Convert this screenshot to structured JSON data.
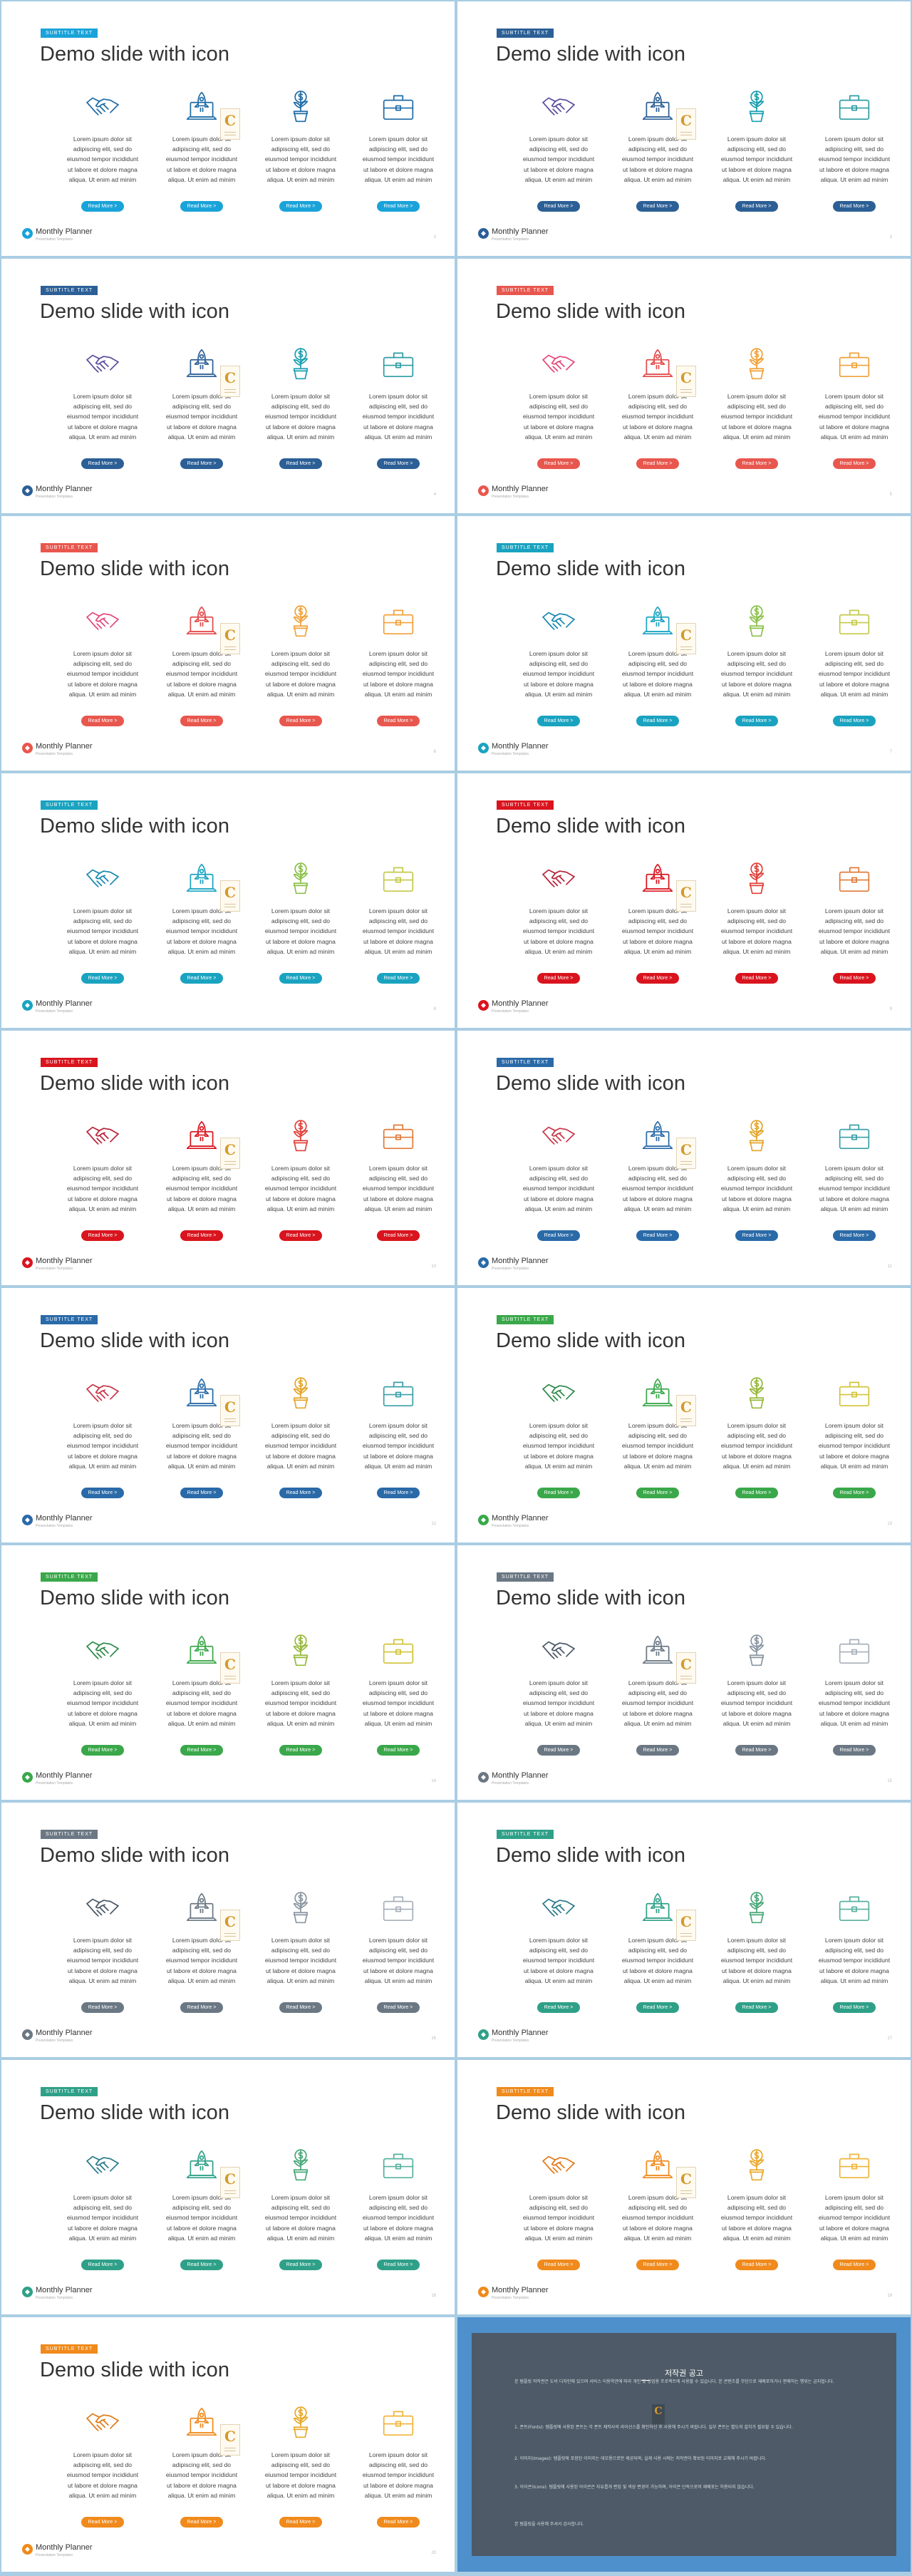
{
  "slide_common": {
    "badge": "SUBTITLE TEXT",
    "title": "Demo slide with icon",
    "body": "Lorem ipsum dolor sit\nadipiscing elit, sed do\neiusmod tempor incididunt\nut labore et dolore magna\naliqua. Ut enim ad minim",
    "button": "Read More  >",
    "brand": "Monthly Planner",
    "brand_sub": "Presentation Templates",
    "stamp_letter": "C"
  },
  "icons": [
    "handshake-icon",
    "laptop-rocket-icon",
    "dollar-plant-icon",
    "briefcase-icon"
  ],
  "slides": [
    {
      "page": "2",
      "accent": "#1aa3d9",
      "icon_colors": [
        "#1e6ca7",
        "#1e6ca7",
        "#1e6ca7",
        "#1e6ca7"
      ]
    },
    {
      "page": "3",
      "accent": "#2c5f96",
      "icon_colors": [
        "#5b4d9e",
        "#2c5f96",
        "#1a9fb0",
        "#2d9da3"
      ]
    },
    {
      "page": "4",
      "accent": "#2c5f96",
      "icon_colors": [
        "#5b4d9e",
        "#2c5f96",
        "#1a9fb0",
        "#2d9da3"
      ]
    },
    {
      "page": "5",
      "accent": "#e8574e",
      "icon_colors": [
        "#e2497a",
        "#e24a4a",
        "#f0a13a",
        "#f0a13a"
      ]
    },
    {
      "page": "6",
      "accent": "#e8574e",
      "icon_colors": [
        "#e2497a",
        "#e24a4a",
        "#f0a13a",
        "#f0a13a"
      ]
    },
    {
      "page": "7",
      "accent": "#1aa3c0",
      "icon_colors": [
        "#1a88b0",
        "#1aa3c0",
        "#8cc04a",
        "#c4c94a"
      ]
    },
    {
      "page": "8",
      "accent": "#1aa3c0",
      "icon_colors": [
        "#1a88b0",
        "#1aa3c0",
        "#8cc04a",
        "#c4c94a"
      ]
    },
    {
      "page": "9",
      "accent": "#d9141e",
      "icon_colors": [
        "#b8243a",
        "#d9141e",
        "#e0413a",
        "#e07b3a"
      ]
    },
    {
      "page": "10",
      "accent": "#d9141e",
      "icon_colors": [
        "#b8243a",
        "#d9141e",
        "#e0413a",
        "#e07b3a"
      ]
    },
    {
      "page": "11",
      "accent": "#2a6aa8",
      "icon_colors": [
        "#c9364a",
        "#2a6aa8",
        "#e3a52a",
        "#3aa0a8"
      ]
    },
    {
      "page": "12",
      "accent": "#2a6aa8",
      "icon_colors": [
        "#c9364a",
        "#2a6aa8",
        "#e3a52a",
        "#3aa0a8"
      ]
    },
    {
      "page": "13",
      "accent": "#3aa84a",
      "icon_colors": [
        "#2e8a4a",
        "#3aa84a",
        "#96b83a",
        "#d2c43a"
      ]
    },
    {
      "page": "14",
      "accent": "#3aa84a",
      "icon_colors": [
        "#2e8a4a",
        "#3aa84a",
        "#96b83a",
        "#d2c43a"
      ]
    },
    {
      "page": "15",
      "accent": "#6b7884",
      "icon_colors": [
        "#4a5866",
        "#6b7884",
        "#8a96a2",
        "#a8b0ba"
      ]
    },
    {
      "page": "16",
      "accent": "#6b7884",
      "icon_colors": [
        "#4a5866",
        "#6b7884",
        "#8a96a2",
        "#a8b0ba"
      ]
    },
    {
      "page": "17",
      "accent": "#2fa088",
      "icon_colors": [
        "#2a7b8a",
        "#2fa088",
        "#48a878",
        "#58b0a0"
      ]
    },
    {
      "page": "18",
      "accent": "#2fa088",
      "icon_colors": [
        "#2a7b8a",
        "#2fa088",
        "#48a878",
        "#58b0a0"
      ]
    },
    {
      "page": "19",
      "accent": "#f08a1c",
      "icon_colors": [
        "#e07a1a",
        "#f08a1c",
        "#e8a82a",
        "#f0b43a"
      ]
    },
    {
      "page": "20",
      "accent": "#f08a1c",
      "icon_colors": [
        "#e07a1a",
        "#f08a1c",
        "#e8a82a",
        "#f0b43a"
      ]
    }
  ],
  "copyright": {
    "title": "저작권 공고",
    "paragraphs": [
      "본 템플릿 저작권은 도비 디자인에 있으며 서비스 이용약관에 따라 개인 및 상업용 프로젝트에 사용할 수 있습니다. 본 콘텐츠를 무단으로 재배포하거나 판매하는 행위는 금지됩니다.",
      "1. 폰트(Fonts): 템플릿에 사용된 폰트는 각 폰트 제작사의 라이선스를 확인하신 후 사용해 주시기 바랍니다. 일부 폰트는 별도의 설치가 필요할 수 있습니다.",
      "2. 이미지(Images): 템플릿에 포함된 이미지는 데모용으로만 제공되며, 실제 사용 시에는 저작권이 확보된 이미지로 교체해 주시기 바랍니다.",
      "3. 아이콘(Icons): 템플릿에 사용된 아이콘은 자유롭게 편집 및 색상 변경이 가능하며, 아이콘 단독으로의 재배포는 허용되지 않습니다.",
      "본 템플릿을 사용해 주셔서 감사합니다."
    ]
  }
}
